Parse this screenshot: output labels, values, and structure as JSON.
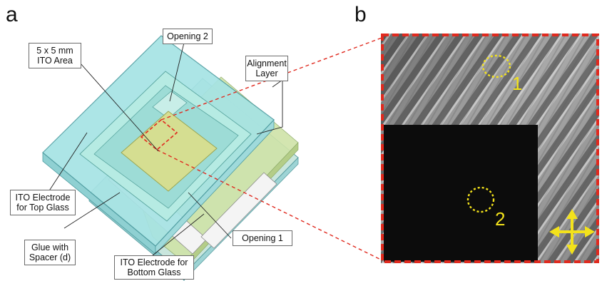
{
  "panel_a": {
    "letter": "a",
    "callouts": {
      "opening2": "Opening 2",
      "ito_area_line1": "5 x 5 mm",
      "ito_area_line2": "ITO Area",
      "alignment_line1": "Alignment",
      "alignment_line2": "Layer",
      "ito_top_line1": "ITO Electrode",
      "ito_top_line2": "for Top Glass",
      "glue_line1": "Glue with",
      "glue_line2": "Spacer (d)",
      "opening1": "Opening 1",
      "ito_bottom_line1": "ITO Electrode for",
      "ito_bottom_line2": "Bottom Glass"
    }
  },
  "panel_b": {
    "letter": "b",
    "spot1": "1",
    "spot2": "2"
  },
  "colors": {
    "top_glass": "#a6e3e4",
    "bottom_glass": "#cfe3a8",
    "ito_area": "#d8df8e",
    "dashed_frame": "#e02a1f",
    "marker": "#f3e21b"
  }
}
